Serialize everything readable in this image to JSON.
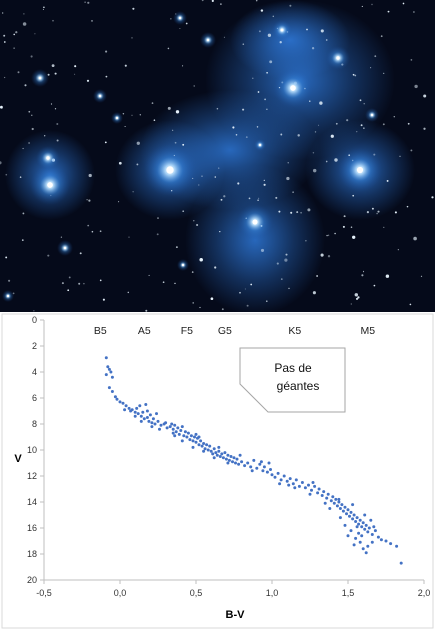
{
  "photo": {
    "subject": "Pleiades star cluster",
    "background_color": "#050a1a",
    "nebula_color": "#2e78d8",
    "star_color": "#eaf6ff"
  },
  "chart_data": {
    "type": "scatter",
    "xlabel": "B-V",
    "ylabel": "V",
    "xlim": [
      -0.5,
      2.0
    ],
    "ylim": [
      20,
      0
    ],
    "y_inverted": true,
    "x_ticks": [
      "-0,5",
      "0,0",
      "0,5",
      "1,0",
      "1,5",
      "2,0"
    ],
    "x_tick_values": [
      -0.5,
      0.0,
      0.5,
      1.0,
      1.5,
      2.0
    ],
    "y_ticks": [
      "0",
      "2",
      "4",
      "6",
      "8",
      "10",
      "12",
      "14",
      "16",
      "18",
      "20"
    ],
    "y_tick_values": [
      0,
      2,
      4,
      6,
      8,
      10,
      12,
      14,
      16,
      18,
      20
    ],
    "grid": false,
    "marker_color": "#4472c4",
    "spectral_classes": [
      {
        "label": "B5",
        "x": -0.13
      },
      {
        "label": "A5",
        "x": 0.16
      },
      {
        "label": "F5",
        "x": 0.44
      },
      {
        "label": "G5",
        "x": 0.69
      },
      {
        "label": "K5",
        "x": 1.15
      },
      {
        "label": "M5",
        "x": 1.63
      }
    ],
    "annotation": {
      "line1": "Pas de",
      "line2": "géantes"
    },
    "points": [
      [
        -0.09,
        2.9
      ],
      [
        -0.08,
        3.6
      ],
      [
        -0.07,
        3.8
      ],
      [
        -0.06,
        4.0
      ],
      [
        -0.09,
        4.2
      ],
      [
        -0.05,
        4.4
      ],
      [
        -0.07,
        5.2
      ],
      [
        -0.05,
        5.5
      ],
      [
        -0.03,
        5.9
      ],
      [
        -0.02,
        6.1
      ],
      [
        0.0,
        6.3
      ],
      [
        0.02,
        6.4
      ],
      [
        0.04,
        6.6
      ],
      [
        0.06,
        6.8
      ],
      [
        0.08,
        6.9
      ],
      [
        0.1,
        7.1
      ],
      [
        0.11,
        6.8
      ],
      [
        0.12,
        7.2
      ],
      [
        0.13,
        6.6
      ],
      [
        0.14,
        7.4
      ],
      [
        0.15,
        7.1
      ],
      [
        0.16,
        7.6
      ],
      [
        0.17,
        6.5
      ],
      [
        0.18,
        7.5
      ],
      [
        0.19,
        7.8
      ],
      [
        0.2,
        7.3
      ],
      [
        0.21,
        7.9
      ],
      [
        0.22,
        7.6
      ],
      [
        0.23,
        8.0
      ],
      [
        0.25,
        7.8
      ],
      [
        0.27,
        8.1
      ],
      [
        0.29,
        8.0
      ],
      [
        0.31,
        8.3
      ],
      [
        0.33,
        8.2
      ],
      [
        0.34,
        8.0
      ],
      [
        0.35,
        8.4
      ],
      [
        0.36,
        8.1
      ],
      [
        0.37,
        8.6
      ],
      [
        0.38,
        8.3
      ],
      [
        0.39,
        8.8
      ],
      [
        0.4,
        8.5
      ],
      [
        0.41,
        8.2
      ],
      [
        0.42,
        8.9
      ],
      [
        0.43,
        8.6
      ],
      [
        0.44,
        9.0
      ],
      [
        0.45,
        8.7
      ],
      [
        0.46,
        9.2
      ],
      [
        0.47,
        8.9
      ],
      [
        0.48,
        9.3
      ],
      [
        0.49,
        9.0
      ],
      [
        0.5,
        9.4
      ],
      [
        0.51,
        9.1
      ],
      [
        0.52,
        9.6
      ],
      [
        0.53,
        9.3
      ],
      [
        0.54,
        9.7
      ],
      [
        0.55,
        9.5
      ],
      [
        0.56,
        9.9
      ],
      [
        0.57,
        9.6
      ],
      [
        0.58,
        10.0
      ],
      [
        0.59,
        9.7
      ],
      [
        0.6,
        10.1
      ],
      [
        0.61,
        10.3
      ],
      [
        0.62,
        9.9
      ],
      [
        0.63,
        10.2
      ],
      [
        0.64,
        10.4
      ],
      [
        0.65,
        10.1
      ],
      [
        0.66,
        10.5
      ],
      [
        0.67,
        10.3
      ],
      [
        0.68,
        10.6
      ],
      [
        0.69,
        10.2
      ],
      [
        0.7,
        10.7
      ],
      [
        0.71,
        10.4
      ],
      [
        0.72,
        10.8
      ],
      [
        0.73,
        10.5
      ],
      [
        0.74,
        10.9
      ],
      [
        0.75,
        10.6
      ],
      [
        0.76,
        11.0
      ],
      [
        0.77,
        10.7
      ],
      [
        0.78,
        11.1
      ],
      [
        0.8,
        10.9
      ],
      [
        0.82,
        11.2
      ],
      [
        0.84,
        11.0
      ],
      [
        0.86,
        11.3
      ],
      [
        0.88,
        10.8
      ],
      [
        0.9,
        11.4
      ],
      [
        0.92,
        11.1
      ],
      [
        0.94,
        11.6
      ],
      [
        0.95,
        11.3
      ],
      [
        0.97,
        11.7
      ],
      [
        0.99,
        11.5
      ],
      [
        1.0,
        11.9
      ],
      [
        1.02,
        12.1
      ],
      [
        1.04,
        11.8
      ],
      [
        1.06,
        12.3
      ],
      [
        1.08,
        12.0
      ],
      [
        1.1,
        12.4
      ],
      [
        1.12,
        12.2
      ],
      [
        1.14,
        12.6
      ],
      [
        1.16,
        12.3
      ],
      [
        1.18,
        12.8
      ],
      [
        1.2,
        12.5
      ],
      [
        1.22,
        12.9
      ],
      [
        1.24,
        12.7
      ],
      [
        1.26,
        13.1
      ],
      [
        1.28,
        12.8
      ],
      [
        1.3,
        13.3
      ],
      [
        1.31,
        13.0
      ],
      [
        1.33,
        13.5
      ],
      [
        1.34,
        13.2
      ],
      [
        1.36,
        13.7
      ],
      [
        1.37,
        13.4
      ],
      [
        1.39,
        13.9
      ],
      [
        1.4,
        13.6
      ],
      [
        1.41,
        14.1
      ],
      [
        1.42,
        13.8
      ],
      [
        1.43,
        14.3
      ],
      [
        1.44,
        14.0
      ],
      [
        1.45,
        14.5
      ],
      [
        1.46,
        14.2
      ],
      [
        1.47,
        14.7
      ],
      [
        1.48,
        14.4
      ],
      [
        1.49,
        14.9
      ],
      [
        1.5,
        14.6
      ],
      [
        1.51,
        15.1
      ],
      [
        1.52,
        14.8
      ],
      [
        1.53,
        15.3
      ],
      [
        1.54,
        15.0
      ],
      [
        1.55,
        15.5
      ],
      [
        1.56,
        15.2
      ],
      [
        1.57,
        15.7
      ],
      [
        1.58,
        15.4
      ],
      [
        1.59,
        15.9
      ],
      [
        1.6,
        15.6
      ],
      [
        1.61,
        16.1
      ],
      [
        1.62,
        15.8
      ],
      [
        1.63,
        16.3
      ],
      [
        1.64,
        16.0
      ],
      [
        1.65,
        15.4
      ],
      [
        1.66,
        16.5
      ],
      [
        1.52,
        16.2
      ],
      [
        1.55,
        16.8
      ],
      [
        1.58,
        17.1
      ],
      [
        1.6,
        17.6
      ],
      [
        1.62,
        17.9
      ],
      [
        1.5,
        16.6
      ],
      [
        1.54,
        17.3
      ],
      [
        1.57,
        16.4
      ],
      [
        1.48,
        15.8
      ],
      [
        1.45,
        15.2
      ],
      [
        1.7,
        16.7
      ],
      [
        1.72,
        16.9
      ],
      [
        1.75,
        17.0
      ],
      [
        1.78,
        17.2
      ],
      [
        1.82,
        17.4
      ],
      [
        1.85,
        18.7
      ],
      [
        1.68,
        16.2
      ],
      [
        1.66,
        17.1
      ],
      [
        1.63,
        17.4
      ],
      [
        1.59,
        16.6
      ],
      [
        1.56,
        15.9
      ],
      [
        1.35,
        14.1
      ],
      [
        1.25,
        13.4
      ],
      [
        1.15,
        12.9
      ],
      [
        1.05,
        12.6
      ],
      [
        0.98,
        11.0
      ],
      [
        0.87,
        11.6
      ],
      [
        0.79,
        10.4
      ],
      [
        0.71,
        11.0
      ],
      [
        0.62,
        10.6
      ],
      [
        0.55,
        10.1
      ],
      [
        0.48,
        9.8
      ],
      [
        0.41,
        9.3
      ],
      [
        0.36,
        8.9
      ],
      [
        0.3,
        7.9
      ],
      [
        0.26,
        8.4
      ],
      [
        0.24,
        7.2
      ],
      [
        0.21,
        8.2
      ],
      [
        0.18,
        7.0
      ],
      [
        0.14,
        7.8
      ],
      [
        0.1,
        7.4
      ],
      [
        0.07,
        7.0
      ],
      [
        0.03,
        6.9
      ],
      [
        0.35,
        8.7
      ],
      [
        0.5,
        8.8
      ],
      [
        0.52,
        9.0
      ],
      [
        0.65,
        9.8
      ],
      [
        0.93,
        10.9
      ],
      [
        1.11,
        12.7
      ],
      [
        1.27,
        12.5
      ],
      [
        1.44,
        13.8
      ],
      [
        1.38,
        14.5
      ],
      [
        1.53,
        14.2
      ],
      [
        1.61,
        15.0
      ],
      [
        1.67,
        15.9
      ]
    ]
  }
}
